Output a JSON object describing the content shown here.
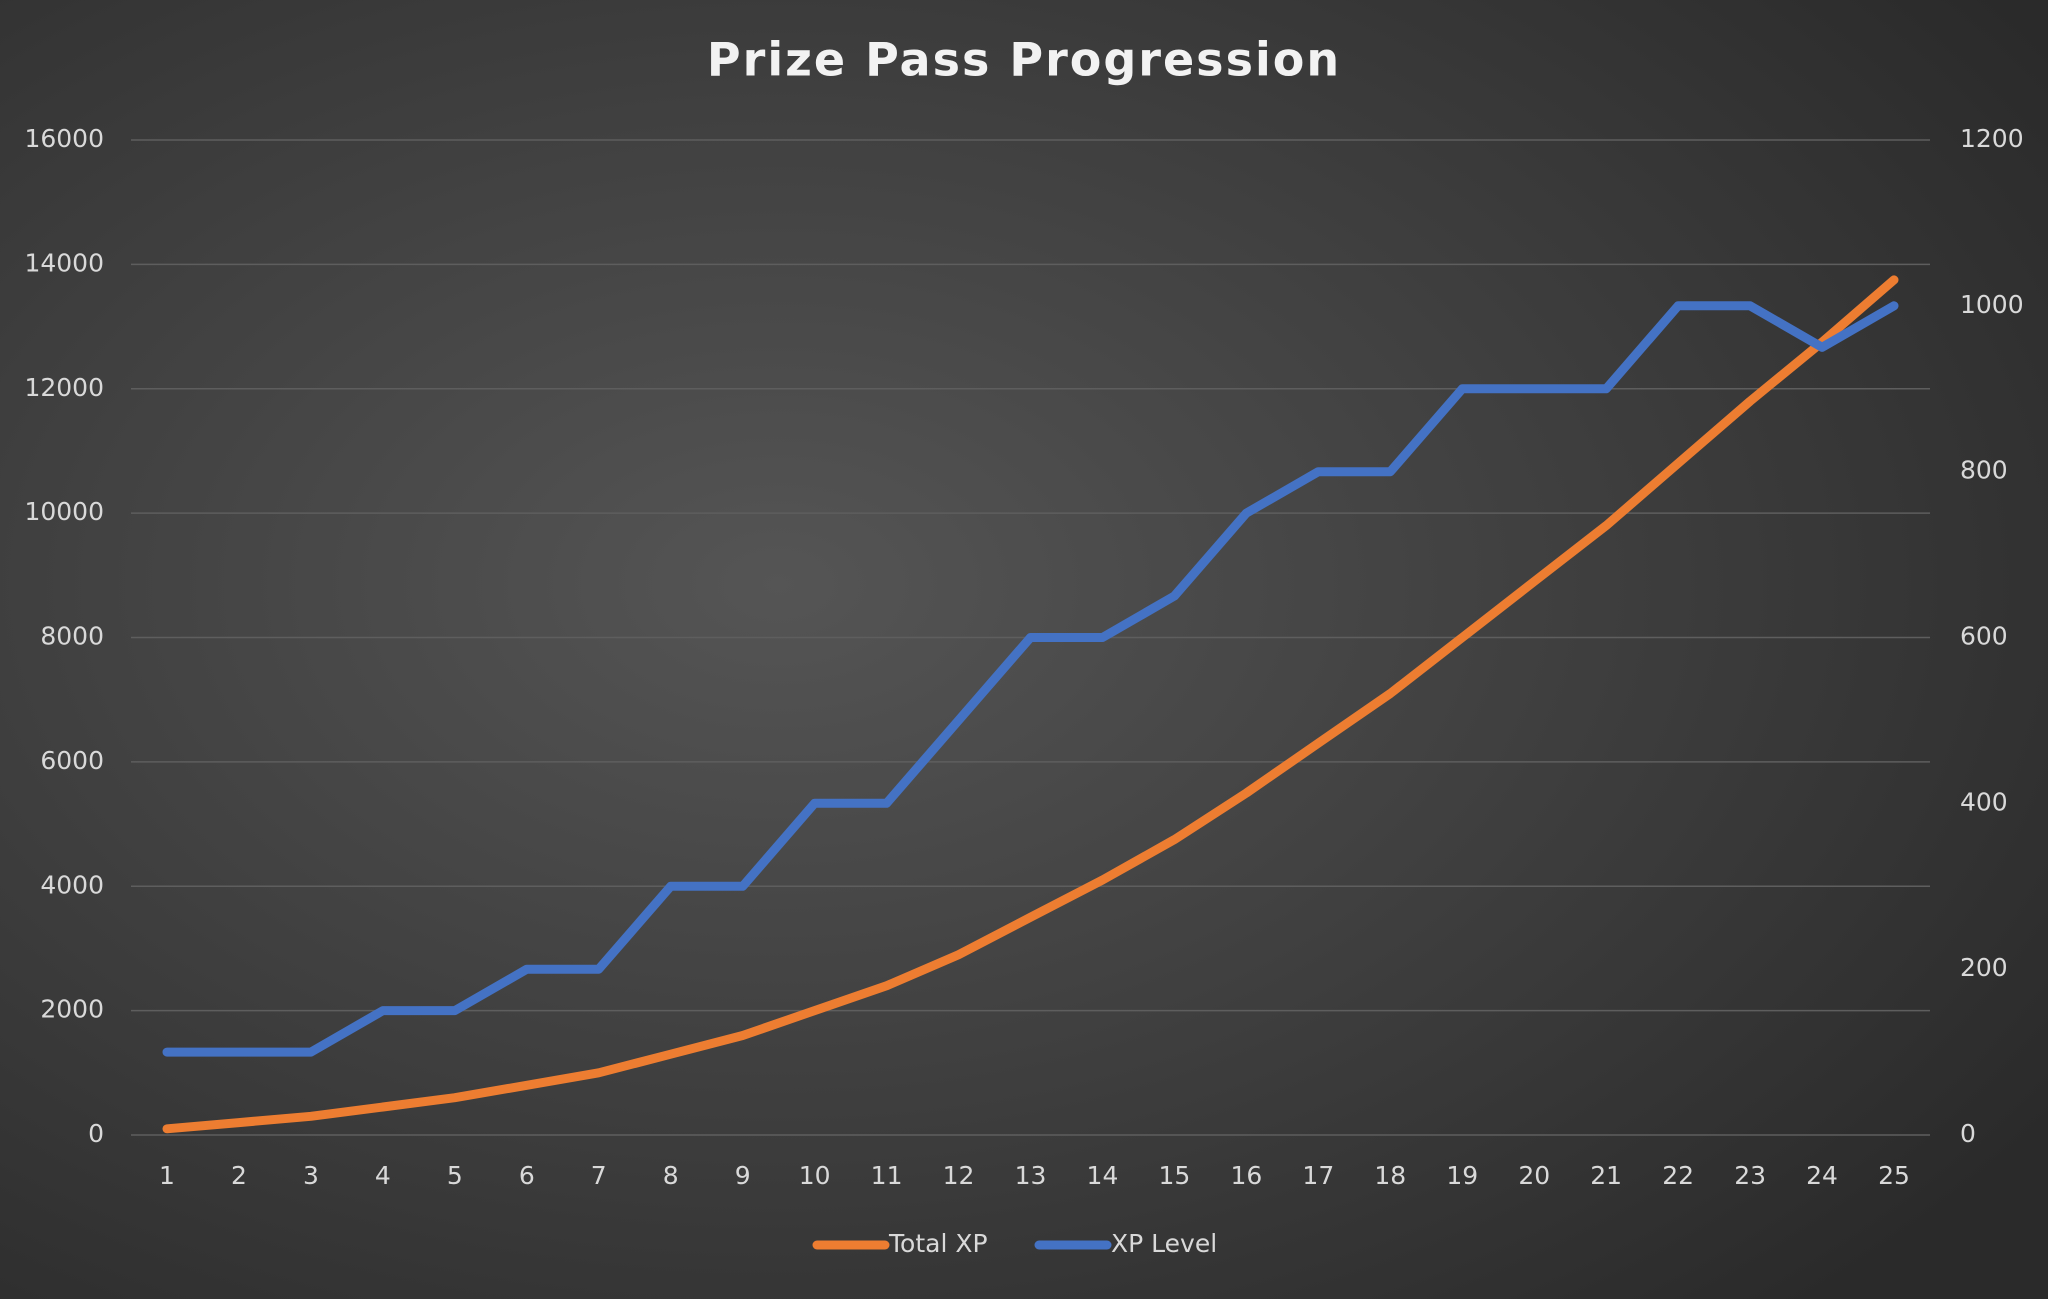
{
  "chart_data": {
    "type": "line",
    "title": "Prize Pass Progression",
    "categories": [
      "1",
      "2",
      "3",
      "4",
      "5",
      "6",
      "7",
      "8",
      "9",
      "10",
      "11",
      "12",
      "13",
      "14",
      "15",
      "16",
      "17",
      "18",
      "19",
      "20",
      "21",
      "22",
      "23",
      "24",
      "25"
    ],
    "series": [
      {
        "name": "Total XP",
        "color": "#ed7d31",
        "axis": "y",
        "values": [
          100,
          200,
          300,
          450,
          600,
          800,
          1000,
          1300,
          1600,
          2000,
          2400,
          2900,
          3500,
          4100,
          4750,
          5500,
          6300,
          7100,
          8000,
          8900,
          9800,
          10800,
          11800,
          12750,
          13750
        ]
      },
      {
        "name": "XP Level",
        "color": "#4472c4",
        "axis": "y2",
        "values": [
          100,
          100,
          100,
          150,
          150,
          200,
          200,
          300,
          300,
          400,
          400,
          500,
          600,
          600,
          650,
          750,
          800,
          800,
          900,
          900,
          900,
          1000,
          1000,
          950,
          1000
        ]
      }
    ],
    "ylim": [
      0,
      16000
    ],
    "yticks": [
      0,
      2000,
      4000,
      6000,
      8000,
      10000,
      12000,
      14000,
      16000
    ],
    "y2lim": [
      0,
      1200
    ],
    "y2ticks": [
      0,
      200,
      400,
      600,
      800,
      1000,
      1200
    ],
    "grid": true,
    "legend": "bottom"
  }
}
